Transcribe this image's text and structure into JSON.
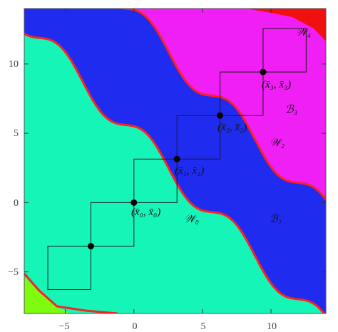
{
  "colors": {
    "basin_lower": "#16f5b8",
    "basin_middle": "#1f2cf0",
    "basin_upper": "#f01ff5",
    "basin_top_corner": "#f01010",
    "basin_bottom_corner": "#7dfc10",
    "boundary": "#ff2020",
    "orbit_line": "#1a1a1a",
    "orbit_point": "#000000"
  },
  "axes": {
    "x_range": [
      -8,
      14
    ],
    "y_range": [
      -8,
      14
    ],
    "x_ticks": [
      -5,
      0,
      5,
      10
    ],
    "y_ticks": [
      -5,
      0,
      5,
      10
    ],
    "x_tick_labels": [
      "−5",
      "0",
      "5",
      "10"
    ],
    "y_tick_labels": [
      "−5",
      "0",
      "5",
      "10"
    ]
  },
  "orbit_points": [
    {
      "x": -3.14,
      "y": -3.14
    },
    {
      "x": 0,
      "y": 0,
      "label": "(x̄₀, x̄₀)"
    },
    {
      "x": 3.14,
      "y": 3.14,
      "label": "(x̄₁, x̄₁)"
    },
    {
      "x": 6.28,
      "y": 6.28,
      "label": "(x̄₂, x̄₂)"
    },
    {
      "x": 9.42,
      "y": 9.42,
      "label": "(x̄₃, x̄₃)"
    }
  ],
  "region_labels": {
    "w0": "𝒲₀",
    "w2": "𝒲₂",
    "w4": "𝒲₄",
    "b1": "ℬ₁",
    "b3": "ℬ₃"
  }
}
